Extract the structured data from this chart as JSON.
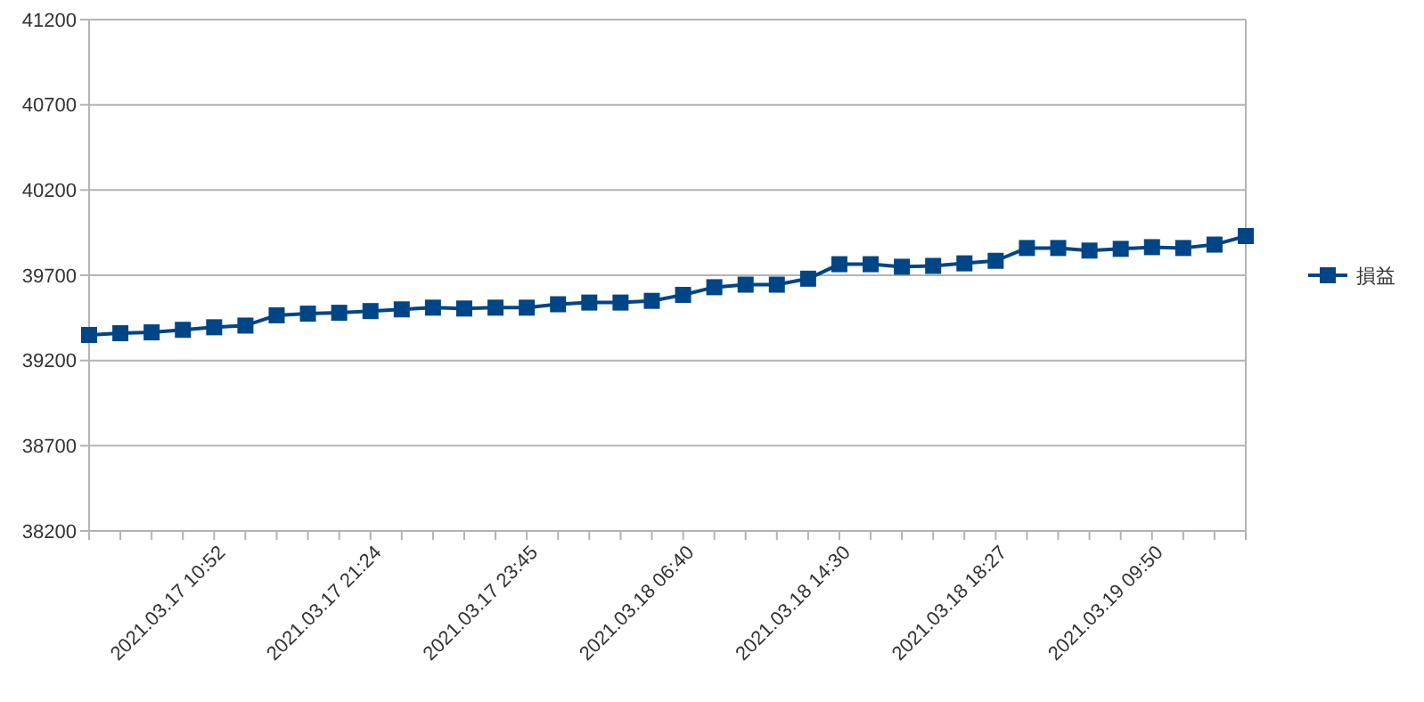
{
  "chart_data": {
    "type": "line",
    "categories": [
      null,
      null,
      null,
      null,
      "2021.03.17 10:52",
      null,
      null,
      null,
      null,
      "2021.03.17 21:24",
      null,
      null,
      null,
      null,
      "2021.03.17 23:45",
      null,
      null,
      null,
      null,
      "2021.03.18 06:40",
      null,
      null,
      null,
      null,
      "2021.03.18 14:30",
      null,
      null,
      null,
      null,
      "2021.03.18 18:27",
      null,
      null,
      null,
      null,
      "2021.03.19 09:50",
      null,
      null,
      null
    ],
    "series": [
      {
        "name": "損益",
        "color": "#004586",
        "values": [
          39350,
          39360,
          39365,
          39380,
          39395,
          39405,
          39465,
          39475,
          39480,
          39490,
          39500,
          39510,
          39505,
          39510,
          39510,
          39530,
          39540,
          39540,
          39550,
          39585,
          39630,
          39645,
          39645,
          39680,
          39765,
          39765,
          39750,
          39755,
          39770,
          39785,
          39860,
          39860,
          39845,
          39855,
          39865,
          39860,
          39880,
          39930
        ]
      }
    ],
    "ylim": [
      38200,
      41200
    ],
    "yticks": [
      38200,
      38700,
      39200,
      39700,
      40200,
      40700,
      41200
    ],
    "grid": "y",
    "legend": "right",
    "marker": "square",
    "line_style": "solid"
  }
}
